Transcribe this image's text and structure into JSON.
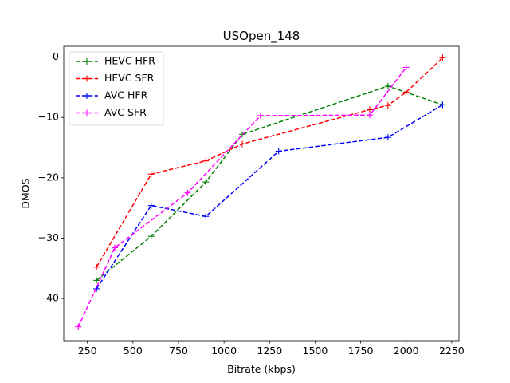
{
  "chart_data": {
    "type": "line",
    "title": "USOpen_148",
    "xlabel": "Bitrate (kbps)",
    "ylabel": "DMOS",
    "xlim": [
      120,
      2290
    ],
    "ylim": [
      -47,
      1.8
    ],
    "xticks": [
      250,
      500,
      750,
      1000,
      1250,
      1500,
      1750,
      2000,
      2250
    ],
    "yticks": [
      0,
      -10,
      -20,
      -30,
      -40
    ],
    "ytick_labels": [
      "0",
      "−10",
      "−20",
      "−30",
      "−40"
    ],
    "grid": false,
    "legend_position": "top-left",
    "series": [
      {
        "name": "HEVC HFR",
        "color": "#008000",
        "x": [
          300,
          600,
          900,
          1100,
          1900,
          2200
        ],
        "y": [
          -37.0,
          -29.7,
          -20.7,
          -12.8,
          -4.8,
          -7.9
        ]
      },
      {
        "name": "HEVC SFR",
        "color": "#ff0000",
        "x": [
          300,
          600,
          900,
          1100,
          1800,
          1900,
          2000,
          2200
        ],
        "y": [
          -34.8,
          -19.4,
          -17.2,
          -14.4,
          -8.7,
          -8.0,
          -5.8,
          -0.1
        ]
      },
      {
        "name": "AVC HFR",
        "color": "#0000ff",
        "x": [
          300,
          600,
          900,
          1300,
          1900,
          2200
        ],
        "y": [
          -38.4,
          -24.6,
          -26.4,
          -15.6,
          -13.3,
          -7.9
        ]
      },
      {
        "name": "AVC SFR",
        "color": "#ff00ff",
        "x": [
          200,
          400,
          800,
          1200,
          1800,
          2000
        ],
        "y": [
          -44.7,
          -31.6,
          -22.5,
          -9.7,
          -9.6,
          -1.7
        ]
      }
    ]
  }
}
